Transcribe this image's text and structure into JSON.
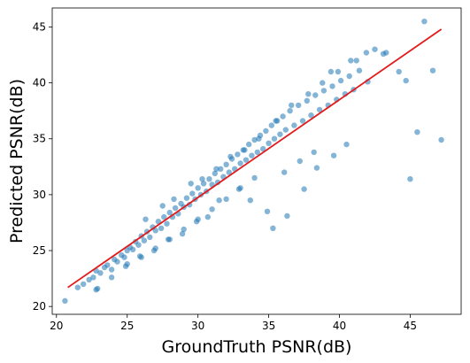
{
  "chart_data": {
    "type": "scatter",
    "title": "",
    "xlabel": "GroundTruth PSNR(dB)",
    "ylabel": "Predicted PSNR(dB)",
    "xlim": [
      19.7,
      48.6
    ],
    "ylim": [
      19.3,
      46.7
    ],
    "xticks": [
      20,
      25,
      30,
      35,
      40,
      45
    ],
    "yticks": [
      20,
      25,
      30,
      35,
      40,
      45
    ],
    "grid": false,
    "legend": "none",
    "series": [
      {
        "kind": "points",
        "color": "#1f77b4",
        "alpha": 0.55,
        "x": [
          20.6,
          21.5,
          21.9,
          22.3,
          22.6,
          22.8,
          22.8,
          23.1,
          23.4,
          23.6,
          23.9,
          24.1,
          24.3,
          24.6,
          24.8,
          25.0,
          25.2,
          25.4,
          25.6,
          25.8,
          26.0,
          26.2,
          26.4,
          26.6,
          26.8,
          27.0,
          27.2,
          27.4,
          27.6,
          27.8,
          28.0,
          28.2,
          28.4,
          28.6,
          28.8,
          29.0,
          29.2,
          29.4,
          29.6,
          29.8,
          30.0,
          30.2,
          30.4,
          30.6,
          30.8,
          31.0,
          31.2,
          31.4,
          31.6,
          31.8,
          32.0,
          32.2,
          32.4,
          32.6,
          32.8,
          33.0,
          33.2,
          33.4,
          33.6,
          33.8,
          34.0,
          34.2,
          34.4,
          34.6,
          34.8,
          35.0,
          35.2,
          35.4,
          35.6,
          35.8,
          36.0,
          36.2,
          36.5,
          36.8,
          37.1,
          37.4,
          37.7,
          38.0,
          38.3,
          38.6,
          38.9,
          39.2,
          39.5,
          39.8,
          40.1,
          40.4,
          40.7,
          41.0,
          41.4,
          42.0,
          43.1,
          44.7,
          45.0,
          45.5,
          46.0,
          46.6,
          47.2,
          39.4,
          40.8,
          41.9,
          38.2,
          37.5,
          36.3,
          35.3,
          34.9,
          33.7,
          32.9,
          31.5,
          30.7,
          29.9,
          28.9,
          27.9,
          26.9,
          25.9,
          24.9,
          23.9,
          22.9,
          26.3,
          27.5,
          28.3,
          29.5,
          30.3,
          31.3,
          32.3,
          33.3,
          34.3,
          35.5,
          36.6,
          37.8,
          38.8,
          39.9,
          41.2,
          42.5,
          43.3,
          44.2,
          36.1,
          37.2,
          38.4,
          39.6,
          40.5,
          34.0,
          33.0,
          32.0,
          31.0,
          30.0,
          29.0,
          28.0,
          27.0,
          26.0,
          25.0
        ],
        "y": [
          20.5,
          21.7,
          22.0,
          22.4,
          22.6,
          21.5,
          23.2,
          23.0,
          23.5,
          23.7,
          23.3,
          24.2,
          24.0,
          24.6,
          24.4,
          25.0,
          25.3,
          25.1,
          25.8,
          25.5,
          26.3,
          25.9,
          26.7,
          26.2,
          27.1,
          26.8,
          27.6,
          27.0,
          28.0,
          27.4,
          28.4,
          28.0,
          28.8,
          28.3,
          29.2,
          28.9,
          29.7,
          29.1,
          30.1,
          29.6,
          30.6,
          30.0,
          31.0,
          30.3,
          31.4,
          30.9,
          31.9,
          31.1,
          32.3,
          31.6,
          32.7,
          32.0,
          33.2,
          32.3,
          33.6,
          32.8,
          34.0,
          33.1,
          34.5,
          33.5,
          34.9,
          33.8,
          35.3,
          34.1,
          35.7,
          34.6,
          36.2,
          35.0,
          36.6,
          35.4,
          37.0,
          35.8,
          37.5,
          36.2,
          38.0,
          36.6,
          38.4,
          37.1,
          38.9,
          37.6,
          39.3,
          38.0,
          39.7,
          38.5,
          40.2,
          39.0,
          40.6,
          39.4,
          41.1,
          40.1,
          42.6,
          40.2,
          31.4,
          35.6,
          45.5,
          41.1,
          34.9,
          41.0,
          42.0,
          42.7,
          33.8,
          30.5,
          28.1,
          27.0,
          28.5,
          29.5,
          30.5,
          29.5,
          28.0,
          27.6,
          26.5,
          26.0,
          25.0,
          24.5,
          23.6,
          22.6,
          21.6,
          27.8,
          29.0,
          29.6,
          31.0,
          31.4,
          32.3,
          33.4,
          34.0,
          35.0,
          36.6,
          38.0,
          39.0,
          40.0,
          41.0,
          42.0,
          43.0,
          42.7,
          41.0,
          32.0,
          33.0,
          32.4,
          33.5,
          34.5,
          31.5,
          30.6,
          29.6,
          28.7,
          27.8,
          26.9,
          26.0,
          25.2,
          24.4,
          23.8
        ]
      },
      {
        "kind": "line",
        "color": "#e31a1c",
        "x": [
          20.8,
          47.2
        ],
        "y": [
          21.7,
          44.8
        ]
      }
    ]
  }
}
